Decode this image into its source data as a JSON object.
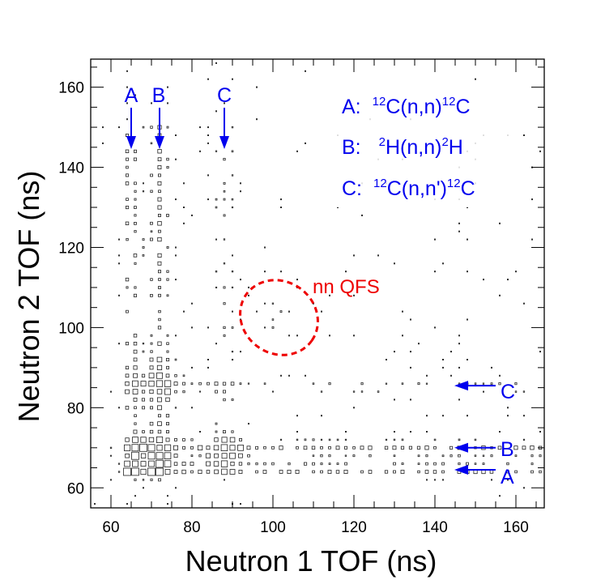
{
  "chart_data": {
    "type": "scatter",
    "subtype": "2D box histogram",
    "xlabel": "Neutron 1 TOF (ns)",
    "ylabel": "Neutron 2 TOF (ns)",
    "xlim": [
      55,
      167
    ],
    "ylim": [
      55,
      167
    ],
    "xticks": [
      60,
      80,
      100,
      120,
      140,
      160
    ],
    "yticks": [
      60,
      80,
      100,
      120,
      140,
      160
    ],
    "grid": false,
    "legend": {
      "entries": [
        {
          "key": "A:",
          "pre": "12",
          "mid": "C(n,n)",
          "post": "12",
          "end": "C"
        },
        {
          "key": "B:",
          "pre": "2",
          "mid": "H(n,n)",
          "post": "2",
          "end": "H"
        },
        {
          "key": "C:",
          "pre": "12",
          "mid": "C(n,n')",
          "post": "12",
          "end": "C"
        }
      ]
    },
    "vertical_bands": [
      {
        "label": "A",
        "x": 65
      },
      {
        "label": "B",
        "x": 72
      },
      {
        "label": "C",
        "x": 88
      }
    ],
    "horizontal_bands": [
      {
        "label": "A",
        "y": 64.5
      },
      {
        "label": "B",
        "y": 70
      },
      {
        "label": "C",
        "y": 85.5
      }
    ],
    "region": {
      "label": "nn QFS",
      "center": [
        101.5,
        102.5
      ],
      "radius_x": 11,
      "radius_y": 10
    },
    "density_clusters": [
      {
        "x": 70,
        "y": 67,
        "weight": 1.0
      },
      {
        "x": 88,
        "y": 69,
        "weight": 0.45
      },
      {
        "x": 72,
        "y": 86,
        "weight": 0.55
      },
      {
        "x": 101,
        "y": 102,
        "weight": 0.3
      }
    ],
    "colors": {
      "annotation": "#0000ee",
      "region": "#ee0000",
      "boxes": "#222222"
    }
  }
}
